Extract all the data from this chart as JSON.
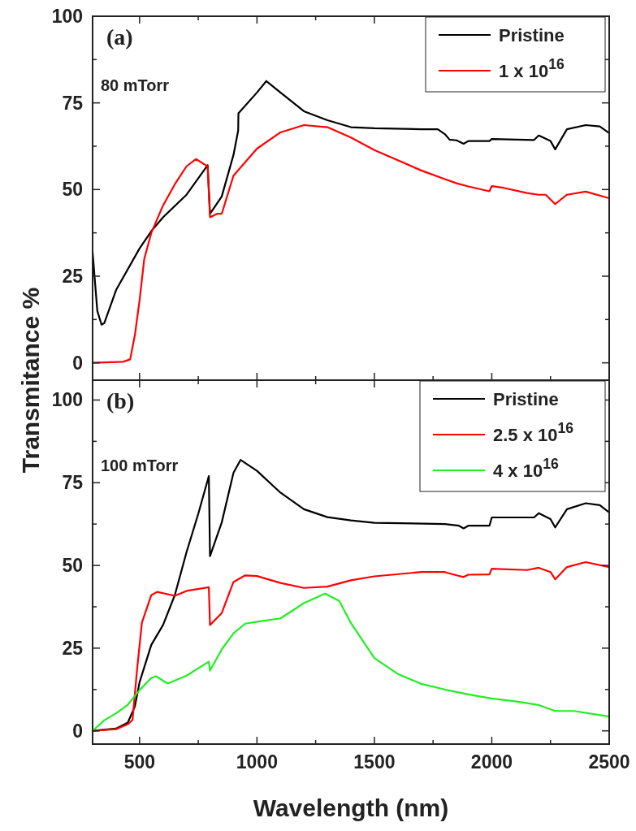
{
  "chart_data": [
    {
      "type": "line",
      "ylabel": "Transmitance %",
      "annotations": [
        "(a)",
        "80 mTorr"
      ],
      "legend": "top right",
      "grid": false,
      "tick_labels": "y",
      "xlim": [
        300,
        2500
      ],
      "xticks": [
        500,
        {
          "value": 750,
          "label": null
        },
        1000,
        {
          "value": 1250,
          "label": null
        },
        1500,
        {
          "value": 1750,
          "label": null
        },
        2000,
        {
          "value": 2250,
          "label": null
        },
        2500
      ],
      "ylim": [
        -5,
        100
      ],
      "yticks": [
        0,
        {
          "value": 12.5,
          "label": null
        },
        25,
        {
          "value": 37.5,
          "label": null
        },
        50,
        {
          "value": 62.5,
          "label": null
        },
        75,
        {
          "value": 87.5,
          "label": null
        },
        100
      ],
      "series": [
        {
          "name": "Pristine",
          "color": "#000000",
          "x": [
            300,
            320,
            338,
            350,
            400,
            500,
            550,
            600,
            700,
            790,
            800,
            850,
            900,
            920,
            921,
            1000,
            1040,
            1100,
            1200,
            1300,
            1400,
            1500,
            1700,
            1770,
            1800,
            1820,
            1850,
            1880,
            1900,
            1990,
            2000,
            2180,
            2200,
            2250,
            2270,
            2320,
            2400,
            2460,
            2500
          ],
          "values": [
            32,
            15,
            11,
            11.5,
            21,
            33,
            38,
            42,
            48.5,
            57,
            43,
            48,
            60,
            67,
            72,
            78,
            81.3,
            78,
            72.6,
            70,
            68,
            67.7,
            67.4,
            67.4,
            66,
            64.4,
            64.2,
            63.2,
            64,
            64,
            64.6,
            64.3,
            65.6,
            64,
            61.6,
            67.4,
            68.6,
            68.2,
            66.3
          ]
        },
        {
          "name": "1 x 10$^{16}$",
          "color": "#ff0000",
          "x": [
            300,
            430,
            460,
            480,
            500,
            520,
            550,
            600,
            650,
            700,
            740,
            790,
            800,
            830,
            850,
            900,
            1000,
            1100,
            1200,
            1300,
            1400,
            1500,
            1700,
            1800,
            1850,
            1900,
            1990,
            2000,
            2050,
            2150,
            2200,
            2230,
            2270,
            2320,
            2400,
            2500
          ],
          "values": [
            0,
            0.3,
            1,
            8,
            18,
            30,
            37.5,
            45.4,
            51.5,
            56.7,
            58.8,
            56.7,
            42,
            43,
            43,
            54,
            61.8,
            66.5,
            68.6,
            68,
            65,
            61.4,
            55.5,
            53,
            51.8,
            50.9,
            49.5,
            51,
            50.5,
            49,
            48.5,
            48.5,
            45.8,
            48.5,
            49.4,
            47.5
          ]
        }
      ]
    },
    {
      "type": "line",
      "xlabel": "Wavelength (nm)",
      "annotations": [
        "(b)",
        "100 mTorr"
      ],
      "legend": "top right",
      "grid": false,
      "xlim": [
        300,
        2500
      ],
      "xticks": [
        500,
        {
          "value": 750,
          "label": null
        },
        1000,
        {
          "value": 1250,
          "label": null
        },
        1500,
        {
          "value": 1750,
          "label": null
        },
        2000,
        {
          "value": 2250,
          "label": null
        },
        2500
      ],
      "ylim": [
        -4,
        106
      ],
      "yticks": [
        0,
        {
          "value": 12.5,
          "label": null
        },
        25,
        {
          "value": 37.5,
          "label": null
        },
        50,
        {
          "value": 62.5,
          "label": null
        },
        75,
        {
          "value": 87.5,
          "label": null
        },
        100
      ],
      "series": [
        {
          "name": "Pristine",
          "color": "#000000",
          "x": [
            300,
            400,
            450,
            480,
            500,
            550,
            600,
            650,
            700,
            750,
            795,
            800,
            850,
            900,
            930,
            1000,
            1100,
            1200,
            1300,
            1400,
            1500,
            1800,
            1860,
            1880,
            1900,
            1990,
            2000,
            2180,
            2200,
            2250,
            2270,
            2320,
            2400,
            2460,
            2500
          ],
          "values": [
            0,
            0.7,
            2.5,
            7.4,
            14.7,
            26,
            32,
            41,
            54,
            65.6,
            77,
            52.8,
            63,
            78,
            81.9,
            78.6,
            72,
            67,
            64.6,
            63.6,
            62.9,
            62.5,
            62,
            61.2,
            62,
            62,
            64.5,
            64.5,
            65.8,
            64,
            61.5,
            67,
            68.8,
            68.2,
            66
          ]
        },
        {
          "name": "2.5 x 10$^{16}$",
          "color": "#ff0000",
          "x": [
            300,
            400,
            450,
            470,
            490,
            510,
            550,
            575,
            650,
            700,
            795,
            800,
            850,
            900,
            950,
            1000,
            1100,
            1200,
            1300,
            1400,
            1500,
            1700,
            1800,
            1850,
            1880,
            1900,
            1990,
            2000,
            2150,
            2200,
            2250,
            2270,
            2320,
            2400,
            2500
          ],
          "values": [
            0,
            0.5,
            2,
            3.3,
            19,
            32.7,
            41,
            42,
            40.8,
            42.3,
            43.4,
            32,
            35.6,
            45,
            47,
            46.8,
            44.7,
            43.2,
            43.6,
            45.5,
            46.7,
            48,
            48,
            47,
            46.5,
            47.2,
            47.3,
            49,
            48.6,
            49.3,
            48,
            45.8,
            49.5,
            51,
            49.5
          ]
        },
        {
          "name": "4 x 10$^{16}$",
          "color": "#22ee22",
          "x": [
            300,
            350,
            400,
            450,
            500,
            550,
            570,
            620,
            700,
            795,
            800,
            850,
            900,
            950,
            1000,
            1100,
            1200,
            1290,
            1350,
            1400,
            1500,
            1600,
            1700,
            1800,
            1900,
            2000,
            2100,
            2200,
            2270,
            2350,
            2500
          ],
          "values": [
            0,
            3.2,
            5.3,
            7.9,
            12.3,
            16,
            16.5,
            14.3,
            16.7,
            20.9,
            18.2,
            24.6,
            29.5,
            32.4,
            33,
            34,
            38.6,
            41.5,
            39.3,
            32.6,
            22,
            17.2,
            14.2,
            12.5,
            11,
            9.8,
            8.9,
            7.8,
            6,
            6,
            4.3
          ]
        }
      ]
    }
  ]
}
